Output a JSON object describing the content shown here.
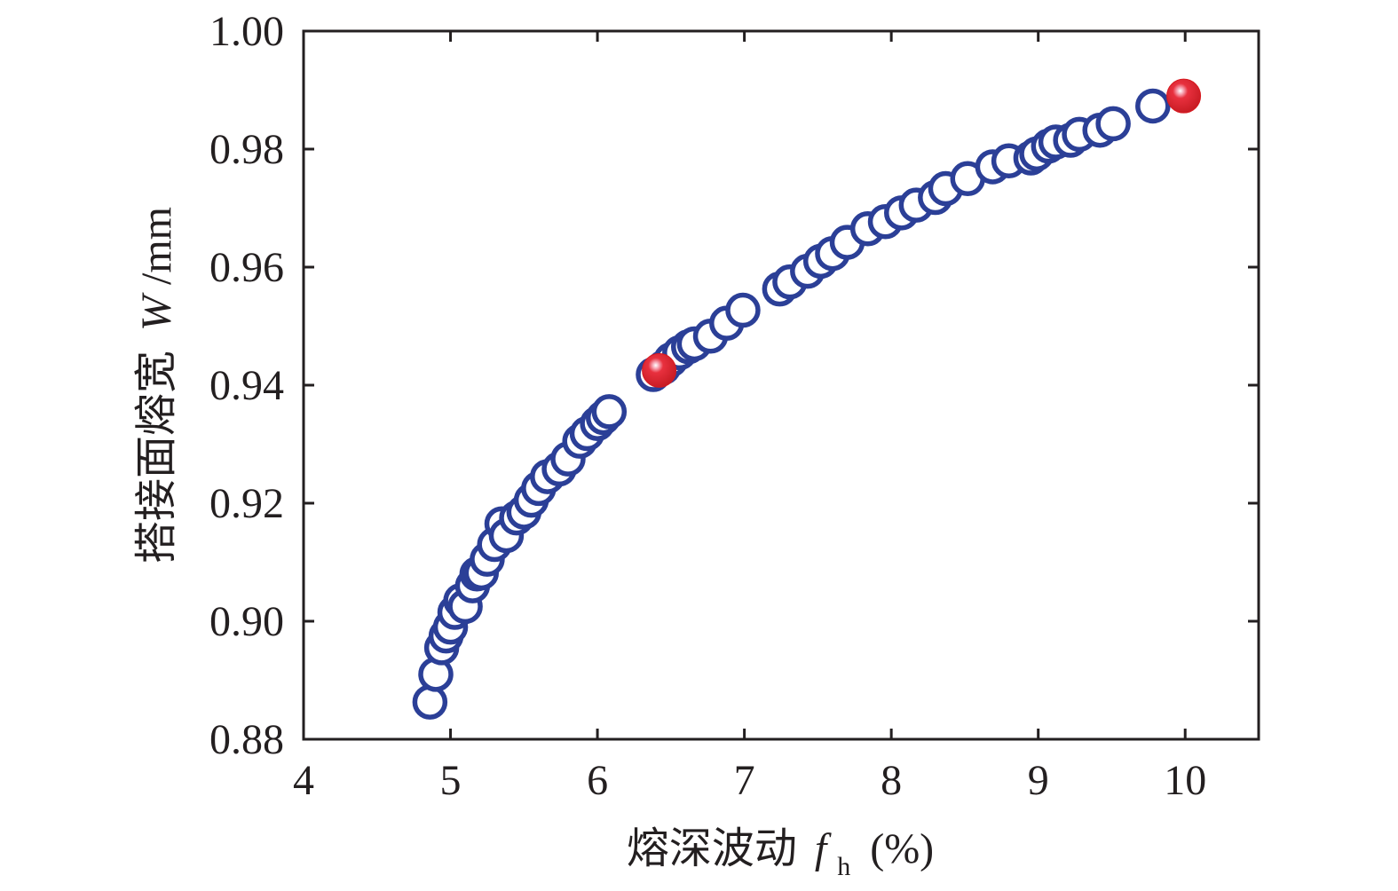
{
  "chart_data": {
    "type": "scatter",
    "xlabel": {
      "prefix": "熔深波动",
      "var_main": "f",
      "var_sub": "h",
      "unit": "(%)"
    },
    "ylabel": {
      "prefix": "搭接面熔宽",
      "var_main": "W",
      "unit": "/mm"
    },
    "xlim": [
      4,
      10.5
    ],
    "ylim": [
      0.88,
      1.0
    ],
    "x_ticks": [
      4,
      5,
      6,
      7,
      8,
      9,
      10
    ],
    "x_tick_labels": [
      "4",
      "5",
      "6",
      "7",
      "8",
      "9",
      "10"
    ],
    "y_ticks": [
      0.88,
      0.9,
      0.92,
      0.94,
      0.96,
      0.98,
      1.0
    ],
    "y_tick_labels": [
      "0.88",
      "0.90",
      "0.92",
      "0.94",
      "0.96",
      "0.98",
      "1.00"
    ],
    "grid": false,
    "colors": {
      "marker_edge": "#2b3f97",
      "highlight": "#d7191f",
      "axis": "#231f20"
    },
    "series": [
      {
        "marker": "open-circle",
        "points": [
          [
            4.86,
            0.8863
          ],
          [
            4.9,
            0.891
          ],
          [
            4.94,
            0.8955
          ],
          [
            4.97,
            0.8975
          ],
          [
            5.0,
            0.899
          ],
          [
            5.03,
            0.9015
          ],
          [
            5.07,
            0.9035
          ],
          [
            5.1,
            0.9025
          ],
          [
            5.15,
            0.906
          ],
          [
            5.18,
            0.908
          ],
          [
            5.21,
            0.9082
          ],
          [
            5.25,
            0.9105
          ],
          [
            5.3,
            0.913
          ],
          [
            5.35,
            0.9165
          ],
          [
            5.38,
            0.9145
          ],
          [
            5.45,
            0.9175
          ],
          [
            5.5,
            0.9185
          ],
          [
            5.55,
            0.9205
          ],
          [
            5.6,
            0.9225
          ],
          [
            5.66,
            0.9245
          ],
          [
            5.74,
            0.9258
          ],
          [
            5.8,
            0.9275
          ],
          [
            5.88,
            0.9305
          ],
          [
            5.93,
            0.9318
          ],
          [
            6.0,
            0.9335
          ],
          [
            6.04,
            0.9345
          ],
          [
            6.08,
            0.9355
          ],
          [
            6.38,
            0.9418
          ],
          [
            6.45,
            0.943
          ],
          [
            6.5,
            0.9443
          ],
          [
            6.56,
            0.9455
          ],
          [
            6.62,
            0.9465
          ],
          [
            6.66,
            0.947
          ],
          [
            6.77,
            0.9483
          ],
          [
            6.88,
            0.9505
          ],
          [
            6.99,
            0.9527
          ],
          [
            7.24,
            0.9563
          ],
          [
            7.31,
            0.9575
          ],
          [
            7.43,
            0.9593
          ],
          [
            7.52,
            0.961
          ],
          [
            7.6,
            0.9623
          ],
          [
            7.7,
            0.9642
          ],
          [
            7.84,
            0.9665
          ],
          [
            7.96,
            0.9677
          ],
          [
            8.07,
            0.9692
          ],
          [
            8.17,
            0.9705
          ],
          [
            8.3,
            0.9718
          ],
          [
            8.37,
            0.9733
          ],
          [
            8.52,
            0.975
          ],
          [
            8.69,
            0.977
          ],
          [
            8.8,
            0.978
          ],
          [
            8.95,
            0.9785
          ],
          [
            8.99,
            0.9792
          ],
          [
            9.07,
            0.9805
          ],
          [
            9.12,
            0.9812
          ],
          [
            9.22,
            0.9815
          ],
          [
            9.28,
            0.9825
          ],
          [
            9.42,
            0.9832
          ],
          [
            9.51,
            0.9843
          ],
          [
            9.78,
            0.9873
          ]
        ]
      },
      {
        "marker": "filled-sphere",
        "points": [
          [
            6.42,
            0.9425
          ],
          [
            9.99,
            0.989
          ]
        ]
      }
    ]
  }
}
